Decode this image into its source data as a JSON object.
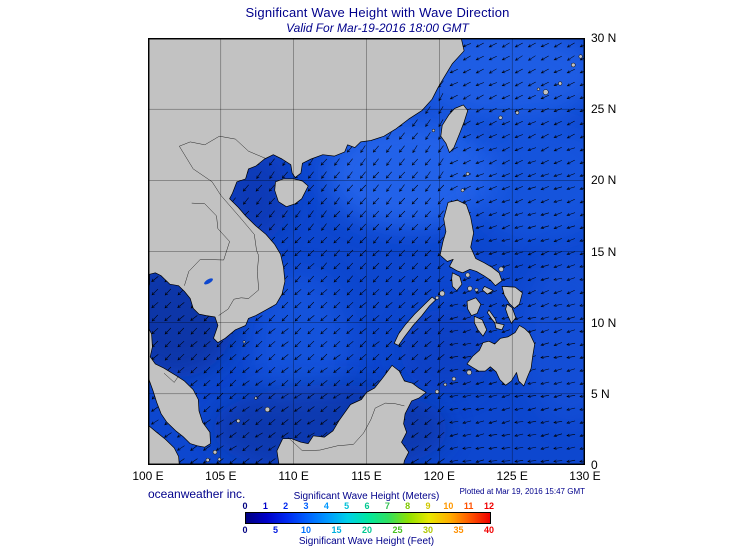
{
  "title": "Significant Wave Height with Wave Direction",
  "subtitle": "Valid For Mar-19-2016 18:00 GMT",
  "credit": "oceanweather inc.",
  "plotted_note": "Plotted at Mar 19, 2016 15:47 GMT",
  "map_bounds": {
    "lon": [
      100,
      130
    ],
    "lat": [
      0,
      30
    ]
  },
  "axes": {
    "lat_ticks": [
      "30 N",
      "25 N",
      "20 N",
      "15 N",
      "10 N",
      "5 N",
      "0"
    ],
    "lon_ticks": [
      "100 E",
      "105 E",
      "110 E",
      "115 E",
      "120 E",
      "125 E",
      "130 E"
    ]
  },
  "legend": {
    "meters_label": "Significant Wave Height (Meters)",
    "feet_label": "Significant Wave Height (Feet)",
    "meters_ticks": [
      "0",
      "1",
      "2",
      "3",
      "4",
      "5",
      "6",
      "7",
      "8",
      "9",
      "10",
      "11",
      "12"
    ],
    "feet_ticks": [
      "0",
      "5",
      "10",
      "15",
      "20",
      "25",
      "30",
      "35",
      "40"
    ],
    "colorbar_colors": [
      "#000080",
      "#0000c8",
      "#0028f0",
      "#0060ff",
      "#0098ff",
      "#00d0e8",
      "#00e8a0",
      "#30e060",
      "#90e000",
      "#e8e800",
      "#ffb000",
      "#ff5800",
      "#f00000"
    ],
    "meters_tick_colors": [
      "#000080",
      "#0000c8",
      "#0028f0",
      "#0060ff",
      "#0098ff",
      "#00c0d8",
      "#00c890",
      "#30c050",
      "#80c800",
      "#d0c800",
      "#ff9800",
      "#ff5000",
      "#f00000"
    ],
    "feet_tick_colors": [
      "#000080",
      "#0018e0",
      "#0070ff",
      "#00b0e0",
      "#00c890",
      "#48c020",
      "#b0c800",
      "#ff9000",
      "#f00000"
    ]
  },
  "colors": {
    "title_text": "#00008b",
    "land": "#c2c2c2",
    "ocean": "#0d47cf",
    "coastline": "#000000"
  }
}
